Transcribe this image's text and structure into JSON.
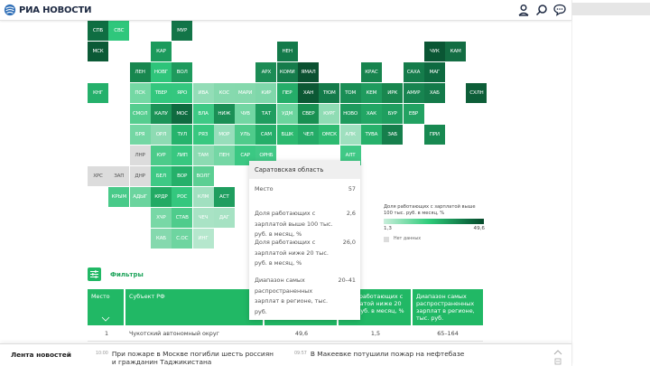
{
  "header": {
    "logo_text": "РИА НОВОСТИ",
    "icons": [
      "user-icon",
      "search-icon",
      "chat-icon"
    ]
  },
  "map": {
    "metric": "Доля работающих с зарплатой выше 100 тыс. руб. в месяц, %",
    "tiles": [
      {
        "code": "СПБ",
        "col": 0,
        "row": 0,
        "color": "#0f6e42"
      },
      {
        "code": "СВС",
        "col": 1,
        "row": 0,
        "color": "#2fc77c"
      },
      {
        "code": "МУР",
        "col": 4,
        "row": 0,
        "color": "#137548"
      },
      {
        "code": "МСК",
        "col": 0,
        "row": 1,
        "color": "#0b5a36"
      },
      {
        "code": "КАР",
        "col": 3,
        "row": 1,
        "color": "#1c9a5c"
      },
      {
        "code": "НЕН",
        "col": 9,
        "row": 1,
        "color": "#137a4a"
      },
      {
        "code": "ЧУК",
        "col": 16,
        "row": 1,
        "color": "#0a5634"
      },
      {
        "code": "КАМ",
        "col": 17,
        "row": 1,
        "color": "#136d43"
      },
      {
        "code": "ЛЕН",
        "col": 2,
        "row": 2,
        "color": "#18874f"
      },
      {
        "code": "НОВГ",
        "col": 3,
        "row": 2,
        "color": "#2ec47a"
      },
      {
        "code": "ВОЛ",
        "col": 4,
        "row": 2,
        "color": "#1e9a5d"
      },
      {
        "code": "АРХ",
        "col": 8,
        "row": 2,
        "color": "#1c8c55"
      },
      {
        "code": "КОМИ",
        "col": 9,
        "row": 2,
        "color": "#157c4b"
      },
      {
        "code": "ЯМАЛ",
        "col": 10,
        "row": 2,
        "color": "#0b5131"
      },
      {
        "code": "КРАС",
        "col": 13,
        "row": 2,
        "color": "#17844e"
      },
      {
        "code": "САХА",
        "col": 15,
        "row": 2,
        "color": "#157c4b"
      },
      {
        "code": "МАГ",
        "col": 16,
        "row": 2,
        "color": "#0e6a40"
      },
      {
        "code": "КНГ",
        "col": 0,
        "row": 3,
        "color": "#25b06b"
      },
      {
        "code": "ПСК",
        "col": 2,
        "row": 3,
        "color": "#74d8a4"
      },
      {
        "code": "ТВЕР",
        "col": 3,
        "row": 3,
        "color": "#33c77e"
      },
      {
        "code": "ЯРО",
        "col": 4,
        "row": 3,
        "color": "#34c77f"
      },
      {
        "code": "ИВА",
        "col": 5,
        "row": 3,
        "color": "#93ddb7"
      },
      {
        "code": "КОС",
        "col": 6,
        "row": 3,
        "color": "#86d9ae"
      },
      {
        "code": "МАРИ",
        "col": 7,
        "row": 3,
        "color": "#85d9ad"
      },
      {
        "code": "КИР",
        "col": 8,
        "row": 3,
        "color": "#7fd7aa"
      },
      {
        "code": "ПЕР",
        "col": 9,
        "row": 3,
        "color": "#25ad69"
      },
      {
        "code": "ХАН",
        "col": 10,
        "row": 3,
        "color": "#0c5834"
      },
      {
        "code": "ТЮМ",
        "col": 11,
        "row": 3,
        "color": "#147b4a"
      },
      {
        "code": "ТОМ",
        "col": 12,
        "row": 3,
        "color": "#1a8e55"
      },
      {
        "code": "КЕМ",
        "col": 13,
        "row": 3,
        "color": "#1f9b5e"
      },
      {
        "code": "ИРК",
        "col": 14,
        "row": 3,
        "color": "#19874f"
      },
      {
        "code": "АМУР",
        "col": 15,
        "row": 3,
        "color": "#178450"
      },
      {
        "code": "ХАБ",
        "col": 16,
        "row": 3,
        "color": "#147a4a"
      },
      {
        "code": "СХЛН",
        "col": 18,
        "row": 3,
        "color": "#0d5e38"
      },
      {
        "code": "СМОЛ",
        "col": 2,
        "row": 4,
        "color": "#55cd8f"
      },
      {
        "code": "КАЛУ",
        "col": 3,
        "row": 4,
        "color": "#1c9458"
      },
      {
        "code": "МОС",
        "col": 4,
        "row": 4,
        "color": "#0f6b40"
      },
      {
        "code": "ВЛА",
        "col": 5,
        "row": 4,
        "color": "#3ec985"
      },
      {
        "code": "НИЖ",
        "col": 6,
        "row": 4,
        "color": "#1b8f56"
      },
      {
        "code": "ЧУВ",
        "col": 7,
        "row": 4,
        "color": "#72d6a3"
      },
      {
        "code": "ТАТ",
        "col": 8,
        "row": 4,
        "color": "#1f9d5f"
      },
      {
        "code": "УДМ",
        "col": 9,
        "row": 4,
        "color": "#6bd49d"
      },
      {
        "code": "СВЕР",
        "col": 10,
        "row": 4,
        "color": "#199052"
      },
      {
        "code": "КУРГ",
        "col": 11,
        "row": 4,
        "color": "#8fdcb4"
      },
      {
        "code": "НОВО",
        "col": 12,
        "row": 4,
        "color": "#1e9a5d"
      },
      {
        "code": "ХАК",
        "col": 13,
        "row": 4,
        "color": "#22a664"
      },
      {
        "code": "БУР",
        "col": 14,
        "row": 4,
        "color": "#1f9e5f"
      },
      {
        "code": "ЕВР",
        "col": 15,
        "row": 4,
        "color": "#22a262"
      },
      {
        "code": "БРЯ",
        "col": 2,
        "row": 5,
        "color": "#74d7a4"
      },
      {
        "code": "ОРЛ",
        "col": 3,
        "row": 5,
        "color": "#8edbb3"
      },
      {
        "code": "ТУЛ",
        "col": 4,
        "row": 5,
        "color": "#26b36c"
      },
      {
        "code": "РЯЗ",
        "col": 5,
        "row": 5,
        "color": "#38c880"
      },
      {
        "code": "МОР",
        "col": 6,
        "row": 5,
        "color": "#97debb"
      },
      {
        "code": "УЛЬ",
        "col": 7,
        "row": 5,
        "color": "#4fcb8b"
      },
      {
        "code": "САМ",
        "col": 8,
        "row": 5,
        "color": "#25ae69"
      },
      {
        "code": "БШК",
        "col": 9,
        "row": 5,
        "color": "#2cb96f"
      },
      {
        "code": "ЧЕЛ",
        "col": 10,
        "row": 5,
        "color": "#24ab67"
      },
      {
        "code": "ОМСК",
        "col": 11,
        "row": 5,
        "color": "#2dba70"
      },
      {
        "code": "АЛК",
        "col": 12,
        "row": 5,
        "color": "#9fe0bf"
      },
      {
        "code": "ТУВА",
        "col": 13,
        "row": 5,
        "color": "#27b16b"
      },
      {
        "code": "ЗАБ",
        "col": 14,
        "row": 5,
        "color": "#167f4c"
      },
      {
        "code": "ПРИ",
        "col": 16,
        "row": 5,
        "color": "#188951"
      },
      {
        "code": "ЛНР",
        "col": 2,
        "row": 6,
        "color": "#dcdcdc",
        "nodata": true
      },
      {
        "code": "КУР",
        "col": 3,
        "row": 6,
        "color": "#4ccb8a"
      },
      {
        "code": "ЛИП",
        "col": 4,
        "row": 6,
        "color": "#38c780"
      },
      {
        "code": "ТАМ",
        "col": 5,
        "row": 6,
        "color": "#8cdbb2"
      },
      {
        "code": "ПЕН",
        "col": 6,
        "row": 6,
        "color": "#75d7a5"
      },
      {
        "code": "САР",
        "col": 7,
        "row": 6,
        "color": "#3bc883"
      },
      {
        "code": "ОРНБ",
        "col": 8,
        "row": 6,
        "color": "#42c987"
      },
      {
        "code": "АЛТ",
        "col": 12,
        "row": 6,
        "color": "#40c986"
      },
      {
        "code": "ХРС",
        "col": 0,
        "row": 7,
        "color": "#dcdcdc",
        "nodata": true
      },
      {
        "code": "ЗАП",
        "col": 1,
        "row": 7,
        "color": "#dcdcdc",
        "nodata": true
      },
      {
        "code": "ДНР",
        "col": 2,
        "row": 7,
        "color": "#dcdcdc",
        "nodata": true
      },
      {
        "code": "БЕЛ",
        "col": 3,
        "row": 7,
        "color": "#3ec985"
      },
      {
        "code": "ВОР",
        "col": 4,
        "row": 7,
        "color": "#25b06a"
      },
      {
        "code": "ВОЛГ",
        "col": 5,
        "row": 7,
        "color": "#5ccf93"
      },
      {
        "code": "КРЫМ",
        "col": 1,
        "row": 8,
        "color": "#48ca89"
      },
      {
        "code": "АДЫГ",
        "col": 2,
        "row": 8,
        "color": "#6bd49e"
      },
      {
        "code": "КРДР",
        "col": 3,
        "row": 8,
        "color": "#22aa64"
      },
      {
        "code": "РОС",
        "col": 4,
        "row": 8,
        "color": "#34c77e"
      },
      {
        "code": "КЛМ",
        "col": 5,
        "row": 8,
        "color": "#a1e0c0"
      },
      {
        "code": "АСТ",
        "col": 6,
        "row": 8,
        "color": "#1f9e5f"
      },
      {
        "code": "ХЧР",
        "col": 3,
        "row": 9,
        "color": "#78d8a6"
      },
      {
        "code": "СТАВ",
        "col": 4,
        "row": 9,
        "color": "#4fcc8c"
      },
      {
        "code": "ЧЕЧ",
        "col": 5,
        "row": 9,
        "color": "#a9e3c5"
      },
      {
        "code": "ДАГ",
        "col": 6,
        "row": 9,
        "color": "#a6e2c3"
      },
      {
        "code": "КАБ",
        "col": 3,
        "row": 10,
        "color": "#85d9ae"
      },
      {
        "code": "С.ОС",
        "col": 4,
        "row": 10,
        "color": "#6ed5a0"
      },
      {
        "code": "ИНГ",
        "col": 5,
        "row": 10,
        "color": "#b5e7cd"
      }
    ]
  },
  "tooltip": {
    "region": "Саратовская область",
    "rows": [
      {
        "label": "Место",
        "value": "57"
      },
      {
        "label": "Доля работающих с зарплатой выше 100 тыс. руб. в месяц, %",
        "value": "2,6"
      },
      {
        "label": "Доля работающих с зарплатой ниже 20 тыс. руб. в месяц, %",
        "value": "26,0"
      },
      {
        "label": "Диапазон самых распространенных зарплат в регионе, тыс. руб.",
        "value": "20–41"
      }
    ]
  },
  "legend": {
    "title": "Доля работающих с зарплатой выше 100 тыс. руб. в месяц, %",
    "min": "1,3",
    "max": "49,6",
    "no_data": "Нет данных",
    "colors": {
      "low": "#c9eedb",
      "mid": "#2ecc7a",
      "high": "#074a2b",
      "nodata": "#dcdcdc"
    }
  },
  "filters": {
    "label": "Фильтры"
  },
  "table": {
    "headers": [
      "Место",
      "Субъект РФ",
      "Доля работающих с зарплатой выше 100 тыс. руб. в месяц, %",
      "Доля работающих с зарплатой ниже 20 тыс. руб. в месяц, %",
      "Диапазон самых распространенных зарплат в регионе, тыс. руб."
    ],
    "rows": [
      [
        "1",
        "Чукотский автономный округ",
        "49,6",
        "1,5",
        "65–164"
      ]
    ]
  },
  "newsbar": {
    "title": "Лента новостей",
    "items": [
      {
        "time": "10:00",
        "text": "При пожаре в Москве погибли шесть россиян и гражданин Таджикистана"
      },
      {
        "time": "09:57",
        "text": "В Макеевке потушили пожар на нефтебазе"
      }
    ]
  },
  "theme": {
    "accent": "#21b865",
    "accent_dark": "#21a55d"
  }
}
